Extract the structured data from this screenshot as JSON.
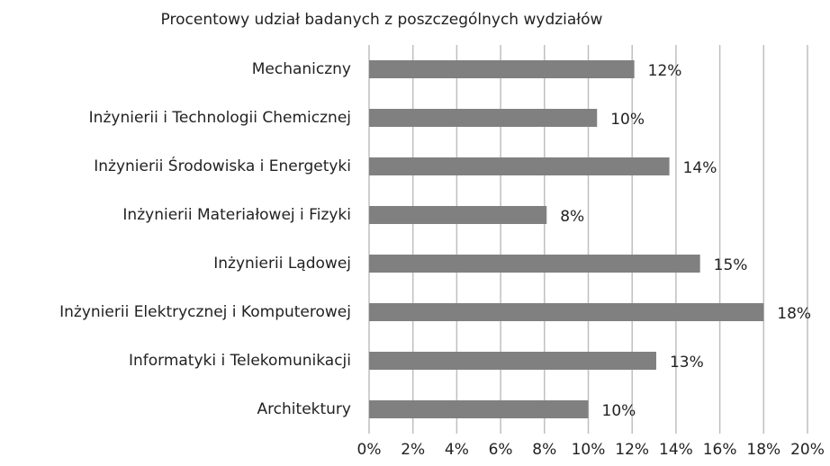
{
  "chart_data": {
    "type": "barh",
    "title": "Procentowy udział badanych z poszczególnych wydziałów",
    "categories": [
      "Mechaniczny",
      "Inżynierii i Technologii Chemicznej",
      "Inżynierii Środowiska i Energetyki",
      "Inżynierii Materiałowej i Fizyki",
      "Inżynierii Lądowej",
      "Inżynierii Elektrycznej i Komputerowej",
      "Informatyki i Telekomunikacji",
      "Architektury"
    ],
    "values": [
      12.1,
      10.4,
      13.7,
      8.1,
      15.1,
      18.0,
      13.1,
      10.0
    ],
    "value_labels": [
      "12%",
      "10%",
      "14%",
      "8%",
      "15%",
      "18%",
      "13%",
      "10%"
    ],
    "color": "#808080",
    "xlim": [
      0,
      20
    ],
    "xticks": [
      {
        "value": 0,
        "label": "0%"
      },
      {
        "value": 2,
        "label": "2%"
      },
      {
        "value": 4,
        "label": "4%"
      },
      {
        "value": 6,
        "label": "6%"
      },
      {
        "value": 8,
        "label": "8%"
      },
      {
        "value": 10,
        "label": "10%"
      },
      {
        "value": 12,
        "label": "12%"
      },
      {
        "value": 14,
        "label": "14%"
      },
      {
        "value": 16,
        "label": "16%"
      },
      {
        "value": 18,
        "label": "18%"
      },
      {
        "value": 20,
        "label": "20%"
      }
    ],
    "grid": true
  }
}
